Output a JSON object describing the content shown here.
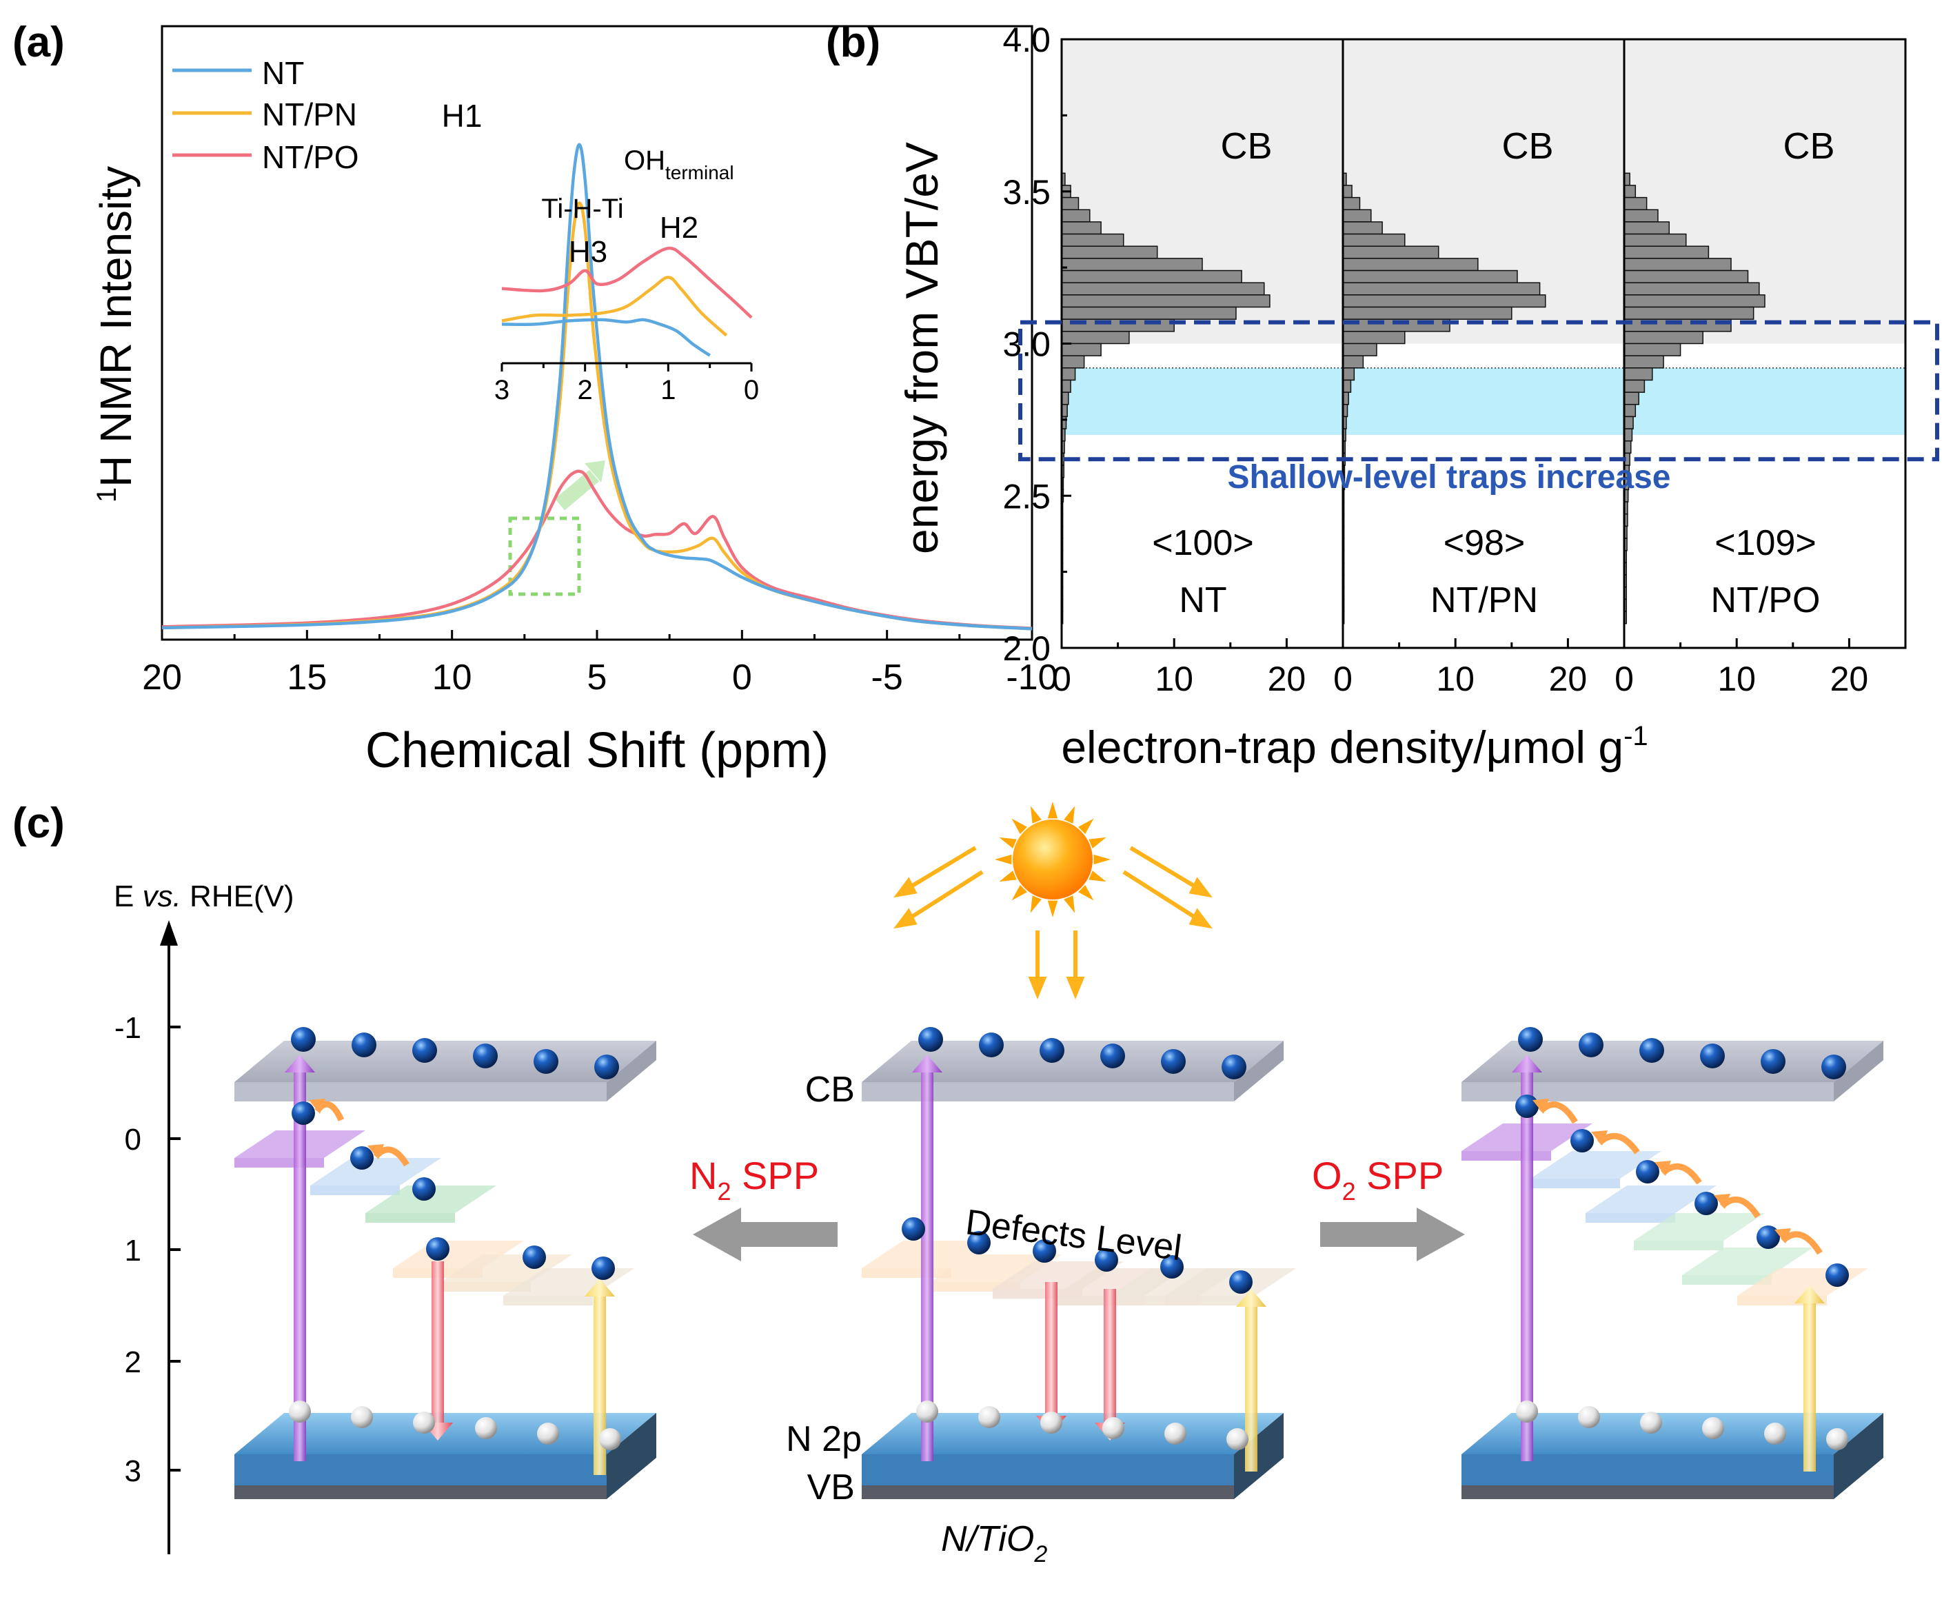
{
  "panel_a": {
    "label": "(a)",
    "ylabel_sup": "1",
    "ylabel_rest": "H NMR Intensity",
    "xlabel": "Chemical Shift (ppm)",
    "peak_h1": "H1",
    "inset_ohterm_main": "OH",
    "inset_ohterm_sub": "terminal",
    "inset_h2": "H2",
    "inset_tihti": "Ti-H-Ti",
    "inset_h3": "H3"
  },
  "panel_b": {
    "label": "(b)",
    "ylabel": "energy from VBT/eV",
    "xlabel_main": "electron-trap density/μmol g",
    "xlabel_sup": "-1",
    "cb_label": "CB",
    "annotation": "Shallow-level traps increase"
  },
  "panel_c": {
    "label": "(c)",
    "axis_title_e": "E ",
    "axis_title_vs": "vs.",
    "axis_title_rest": " RHE(V)",
    "ticks": [
      "-1",
      "0",
      "1",
      "2",
      "3"
    ],
    "cb_label": "CB",
    "defects_label": "Defects Level",
    "n2p_label": "N 2p",
    "vb_label": "VB",
    "material_main": "N/TiO",
    "material_sub": "2",
    "n2_spp_main": "N",
    "n2_spp_sub": "2",
    "n2_spp_rest": " SPP",
    "o2_spp_main": "O",
    "o2_spp_sub": "2",
    "o2_spp_rest": " SPP"
  },
  "colors": {
    "nt": "#5ba7e0",
    "ntpn": "#f7b731",
    "ntpo": "#f07080",
    "bar": "#8c8c8c",
    "dashed_box": "#1f3f99",
    "shallow_fill": "#bdeefb",
    "cb_fill": "#eeeeee",
    "spp_red": "#e8141e",
    "annotation_blue": "#2a58b4"
  },
  "chart_data": [
    {
      "type": "line",
      "title": "",
      "xlabel": "Chemical Shift (ppm)",
      "ylabel": "1H NMR Intensity",
      "xlim": [
        20,
        -10
      ],
      "xticks": [
        20,
        15,
        10,
        5,
        0,
        -5,
        -10
      ],
      "yticks": [],
      "legend": "top-left",
      "series": [
        {
          "name": "NT",
          "color": "#5ba7e0",
          "x": [
            20,
            15,
            12,
            10,
            8.5,
            7.5,
            6.8,
            6.3,
            6.0,
            5.8,
            5.6,
            5.4,
            5.1,
            4.6,
            4.0,
            3.4,
            3.0,
            2.5,
            2.0,
            1.5,
            1.1,
            0.6,
            0,
            -1,
            -2.5,
            -4,
            -6,
            -8,
            -10
          ],
          "y": [
            0.006,
            0.012,
            0.022,
            0.04,
            0.075,
            0.13,
            0.26,
            0.5,
            0.78,
            0.94,
            1.0,
            0.92,
            0.68,
            0.4,
            0.25,
            0.185,
            0.165,
            0.155,
            0.15,
            0.148,
            0.145,
            0.13,
            0.11,
            0.085,
            0.06,
            0.04,
            0.02,
            0.01,
            0.004
          ]
        },
        {
          "name": "NT/PN",
          "color": "#f7b731",
          "x": [
            20,
            15,
            12,
            10,
            8.5,
            7.5,
            6.8,
            6.3,
            6.0,
            5.8,
            5.6,
            5.4,
            5.1,
            4.6,
            4.0,
            3.4,
            3.0,
            2.5,
            2.0,
            1.5,
            1.0,
            0.6,
            0,
            -1,
            -2.5,
            -4,
            -6,
            -8,
            -10
          ],
          "y": [
            0.006,
            0.013,
            0.024,
            0.042,
            0.078,
            0.135,
            0.25,
            0.46,
            0.7,
            0.83,
            0.88,
            0.82,
            0.6,
            0.37,
            0.235,
            0.18,
            0.165,
            0.162,
            0.165,
            0.175,
            0.19,
            0.16,
            0.12,
            0.085,
            0.06,
            0.04,
            0.02,
            0.01,
            0.004
          ]
        },
        {
          "name": "NT/PO",
          "color": "#f07080",
          "x": [
            20,
            15,
            12,
            10,
            8.5,
            7.5,
            6.8,
            6.3,
            6.0,
            5.8,
            5.6,
            5.4,
            5.1,
            4.6,
            4.0,
            3.4,
            3.0,
            2.5,
            2.0,
            1.6,
            1.0,
            0.6,
            0,
            -1,
            -2.5,
            -4,
            -6,
            -8,
            -10
          ],
          "y": [
            0.008,
            0.016,
            0.03,
            0.055,
            0.1,
            0.16,
            0.23,
            0.29,
            0.315,
            0.325,
            0.328,
            0.32,
            0.29,
            0.245,
            0.21,
            0.195,
            0.198,
            0.2,
            0.22,
            0.2,
            0.235,
            0.19,
            0.13,
            0.09,
            0.065,
            0.042,
            0.022,
            0.011,
            0.005
          ]
        }
      ],
      "inset": {
        "xlim": [
          3,
          0
        ],
        "xticks": [
          3,
          2,
          1,
          0
        ],
        "series": [
          {
            "name": "NT",
            "x": [
              3,
              2.6,
              2.2,
              1.8,
              1.5,
              1.3,
              1.1,
              0.9,
              0.7,
              0.5
            ],
            "y": [
              0.3,
              0.3,
              0.33,
              0.34,
              0.32,
              0.34,
              0.3,
              0.24,
              0.12,
              0.02
            ]
          },
          {
            "name": "NT/PN",
            "x": [
              3,
              2.6,
              2.2,
              1.8,
              1.5,
              1.2,
              1.0,
              0.85,
              0.6,
              0.3
            ],
            "y": [
              0.33,
              0.38,
              0.38,
              0.4,
              0.46,
              0.62,
              0.72,
              0.62,
              0.4,
              0.2
            ]
          },
          {
            "name": "NT/PO",
            "x": [
              3,
              2.5,
              2.2,
              2.0,
              1.85,
              1.6,
              1.3,
              1.0,
              0.8,
              0.5,
              0.2,
              0
            ],
            "y": [
              0.62,
              0.6,
              0.66,
              0.78,
              0.66,
              0.7,
              0.86,
              0.98,
              0.9,
              0.7,
              0.5,
              0.36
            ]
          }
        ]
      }
    },
    {
      "type": "bar",
      "orientation": "horizontal",
      "title": "",
      "ylabel": "energy from VBT/eV",
      "xlabel": "electron-trap density/μmol g-1",
      "ylim": [
        2.0,
        4.0
      ],
      "yticks": [
        2.0,
        2.5,
        3.0,
        3.5,
        4.0
      ],
      "xlim": [
        0,
        25
      ],
      "xticks": [
        0,
        10,
        20
      ],
      "cb_region_ev": [
        3.0,
        4.0
      ],
      "shallow_region_ev": [
        2.7,
        2.92
      ],
      "categories": [
        3.54,
        3.5,
        3.46,
        3.42,
        3.38,
        3.34,
        3.3,
        3.26,
        3.22,
        3.18,
        3.14,
        3.1,
        3.06,
        3.02,
        2.98,
        2.94,
        2.9,
        2.86,
        2.82,
        2.78,
        2.74,
        2.7,
        2.66,
        2.62,
        2.58,
        2.54,
        2.5,
        2.46,
        2.42,
        2.38,
        2.34,
        2.3,
        2.26,
        2.22,
        2.18,
        2.14,
        2.1
      ],
      "series": [
        {
          "name": "NT",
          "total": "<100>",
          "label": "NT",
          "values": [
            0.3,
            0.8,
            1.5,
            2.5,
            3.5,
            5.5,
            8.5,
            12.5,
            16.0,
            18.0,
            18.5,
            15.5,
            10.0,
            6.0,
            3.5,
            2.0,
            1.2,
            0.8,
            0.6,
            0.5,
            0.4,
            0.3,
            0.25,
            0.2,
            0.2,
            0.15,
            0.15,
            0.1,
            0.1,
            0.1,
            0.1,
            0.1,
            0.1,
            0.1,
            0.1,
            0.1,
            0.1
          ]
        },
        {
          "name": "NT/PN",
          "total": "<98>",
          "label": "NT/PN",
          "values": [
            0.3,
            0.8,
            1.5,
            2.5,
            3.5,
            5.5,
            8.5,
            12.0,
            15.5,
            17.5,
            18.0,
            15.0,
            9.5,
            5.5,
            3.0,
            1.8,
            1.0,
            0.7,
            0.5,
            0.4,
            0.3,
            0.25,
            0.2,
            0.2,
            0.15,
            0.15,
            0.1,
            0.1,
            0.1,
            0.1,
            0.1,
            0.1,
            0.1,
            0.1,
            0.1,
            0.1,
            0.1
          ]
        },
        {
          "name": "NT/PO",
          "total": "<109>",
          "label": "NT/PO",
          "values": [
            0.5,
            1.0,
            2.0,
            3.0,
            4.0,
            5.5,
            7.5,
            9.5,
            11.0,
            12.0,
            12.5,
            11.5,
            9.5,
            7.0,
            5.0,
            3.5,
            2.5,
            1.8,
            1.3,
            1.0,
            0.8,
            0.7,
            0.6,
            0.5,
            0.45,
            0.4,
            0.35,
            0.3,
            0.3,
            0.25,
            0.25,
            0.2,
            0.2,
            0.2,
            0.2,
            0.2,
            0.2
          ]
        }
      ]
    }
  ]
}
